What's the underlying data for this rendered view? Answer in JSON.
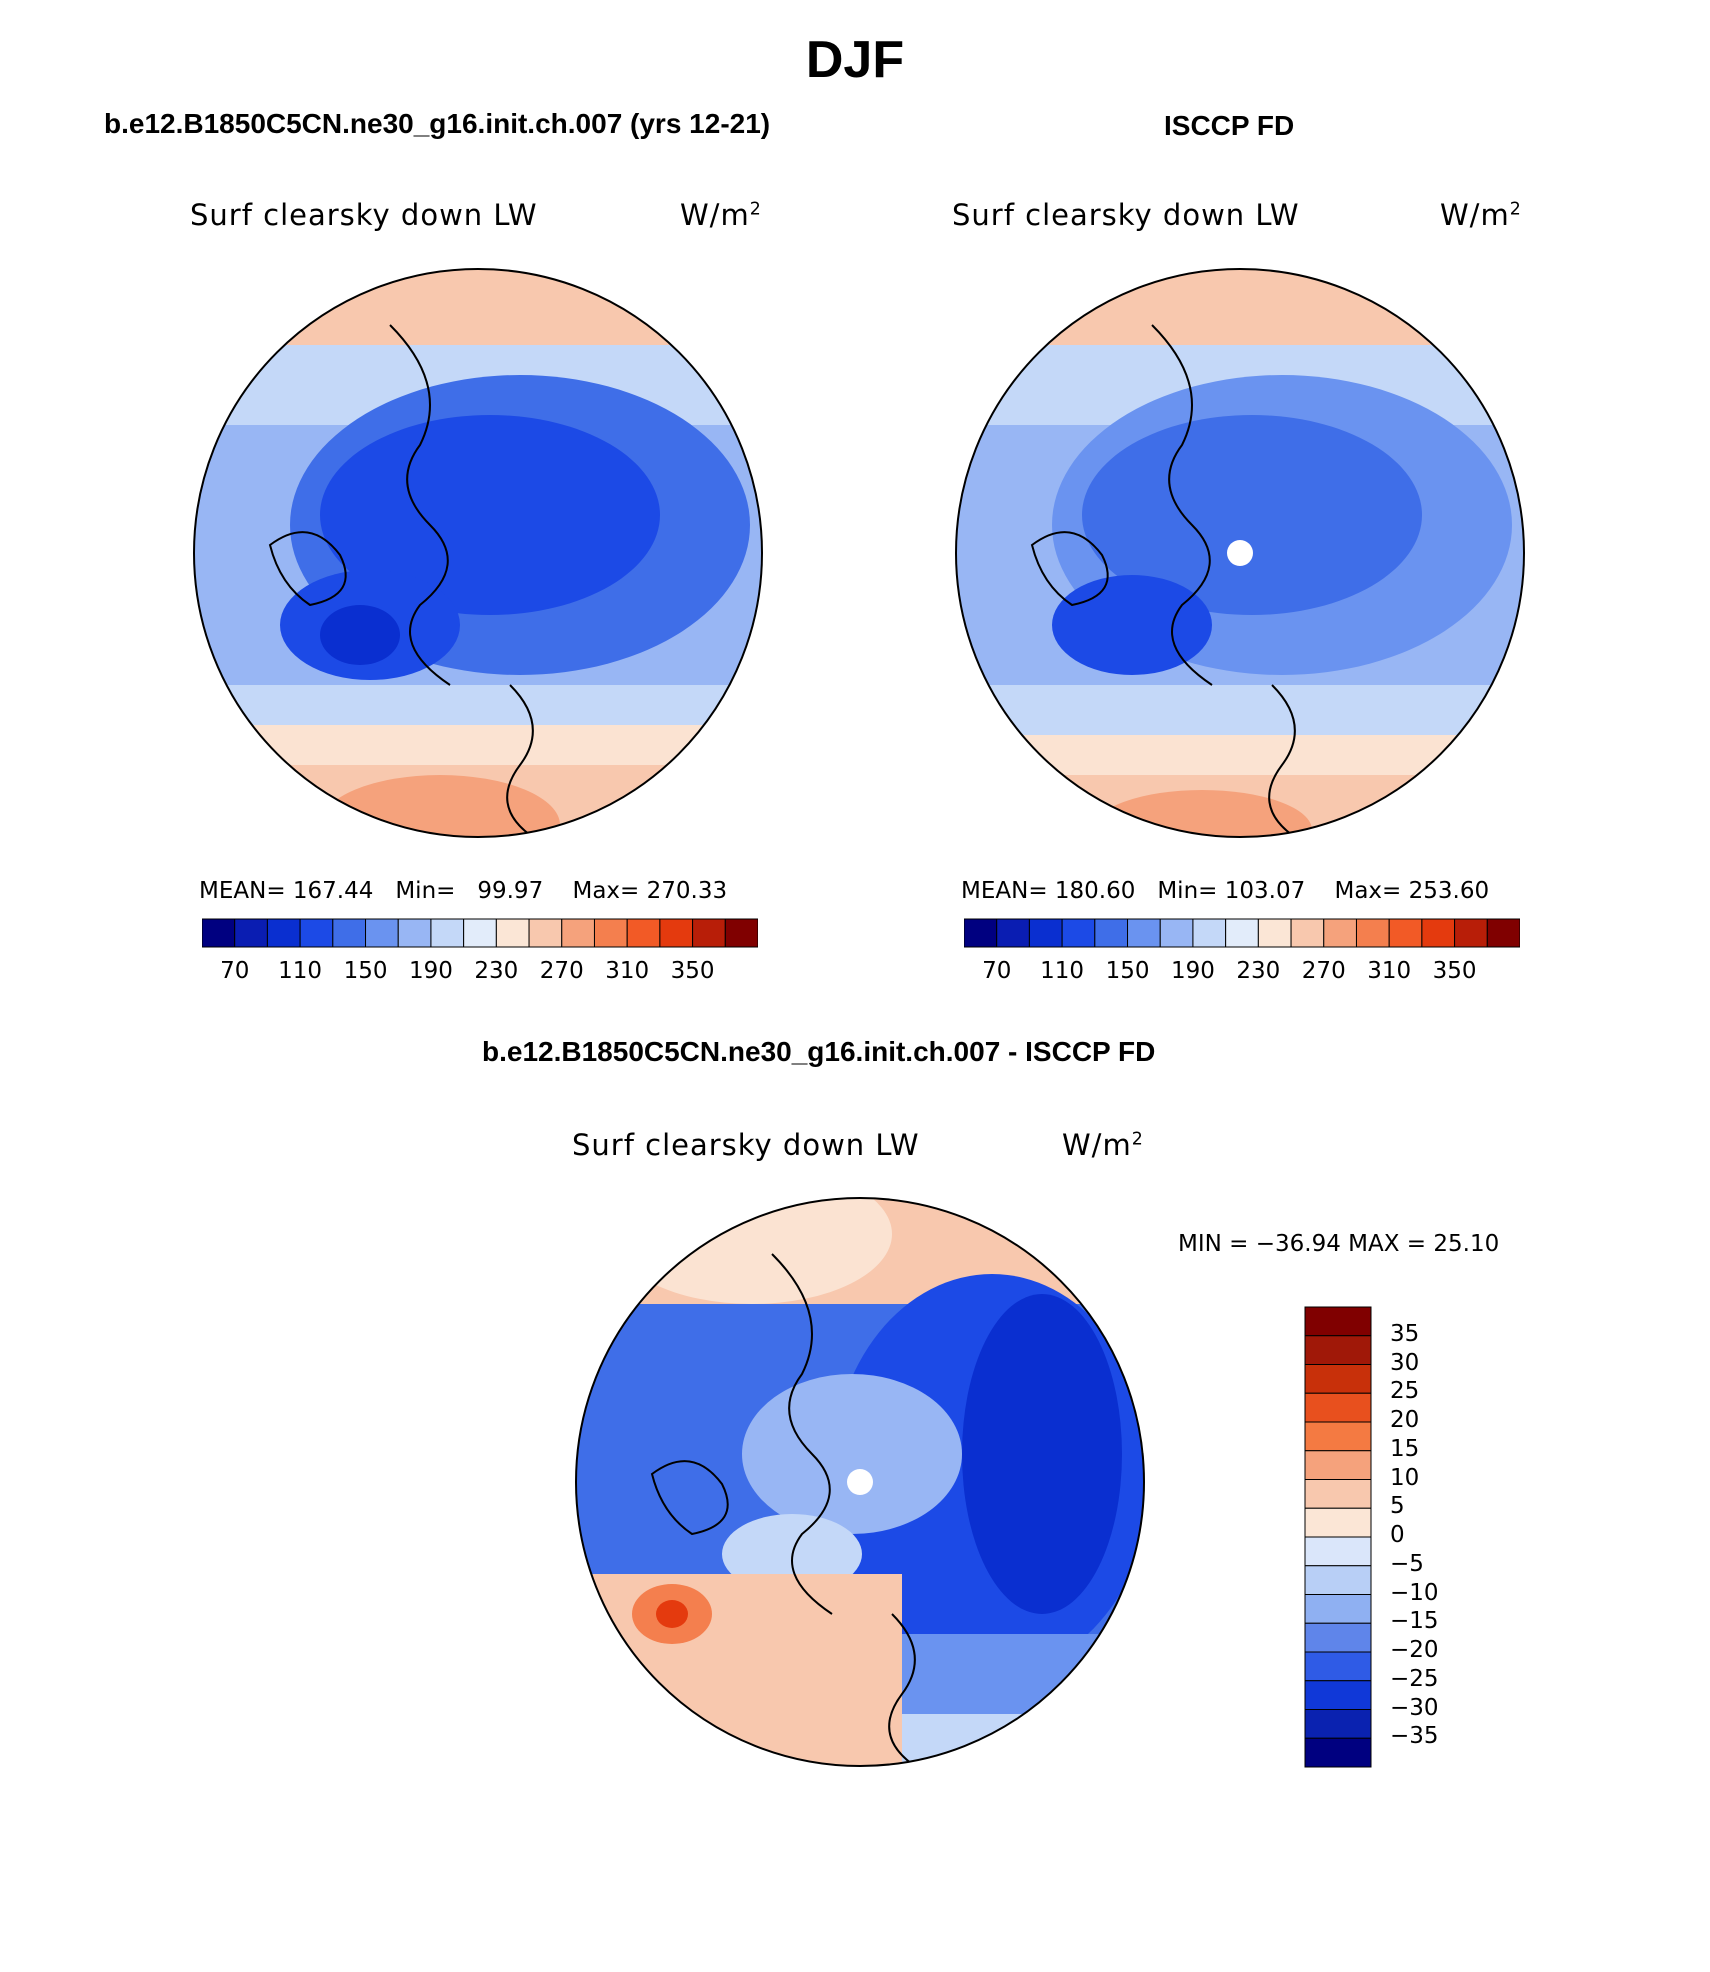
{
  "figure": {
    "title": "DJF",
    "units_base": "W/m",
    "units_exp": "2"
  },
  "panels": [
    {
      "subtitle": "b.e12.B1850C5CN.ne30_g16.init.ch.007 (yrs 12-21)",
      "variable": "Surf clearsky down LW",
      "mean_label": "MEAN=",
      "mean": "167.44",
      "min_label": "Min=",
      "min": "99.97",
      "max_label": "Max=",
      "max": "270.33"
    },
    {
      "subtitle": "ISCCP FD",
      "variable": "Surf clearsky down LW",
      "mean_label": "MEAN=",
      "mean": "180.60",
      "min_label": "Min=",
      "min": "103.07",
      "max_label": "Max=",
      "max": "253.60"
    },
    {
      "subtitle": "b.e12.B1850C5CN.ne30_g16.init.ch.007 - ISCCP FD",
      "variable": "Surf clearsky down LW",
      "minmax_text": "MIN = −36.94 MAX =  25.10"
    }
  ],
  "colors": {
    "blue_scale": [
      "#000080",
      "#0010a8",
      "#0a2fd0",
      "#1c4ae6",
      "#3f6ee8",
      "#6a93f0",
      "#98b6f4",
      "#c4d8f8",
      "#e2ecfa"
    ],
    "red_scale": [
      "#fbe3d2",
      "#f8c8ae",
      "#f5a27c",
      "#f47f4e",
      "#f25a26",
      "#e43a0e",
      "#b81e08",
      "#800000"
    ],
    "abs_bar": [
      "#000080",
      "#0a1db2",
      "#0a2fd0",
      "#1c4ae6",
      "#3f6ee8",
      "#6a93f0",
      "#98b6f4",
      "#c4d8f8",
      "#e2ecfa",
      "#fbe6d6",
      "#f8c8ae",
      "#f5a27c",
      "#f47f4e",
      "#f25a26",
      "#e43a0e",
      "#b81e08",
      "#800000"
    ],
    "diff_bar": [
      "#800000",
      "#a01808",
      "#c8300a",
      "#e8501e",
      "#f47a42",
      "#f5a27c",
      "#f8c8ae",
      "#fbe6d6",
      "#dae6fa",
      "#b8cff6",
      "#8fb0f2",
      "#5f85ea",
      "#2f5be6",
      "#1038d8",
      "#0a22b0",
      "#000080"
    ]
  },
  "chart_data": [
    {
      "type": "heatmap",
      "projection": "north-polar-stereographic",
      "title": "Surf clearsky down LW",
      "units": "W/m^2",
      "stats": {
        "mean": 167.44,
        "min": 99.97,
        "max": 270.33
      },
      "colorbar": {
        "levels": [
          70,
          90,
          110,
          130,
          150,
          170,
          190,
          210,
          230,
          250,
          270,
          290,
          310,
          330,
          350
        ],
        "tick_labels": [
          "70",
          "110",
          "150",
          "190",
          "230",
          "270",
          "310",
          "350"
        ],
        "orientation": "horizontal"
      }
    },
    {
      "type": "heatmap",
      "projection": "north-polar-stereographic",
      "title": "Surf clearsky down LW",
      "units": "W/m^2",
      "stats": {
        "mean": 180.6,
        "min": 103.07,
        "max": 253.6
      },
      "colorbar": {
        "levels": [
          70,
          90,
          110,
          130,
          150,
          170,
          190,
          210,
          230,
          250,
          270,
          290,
          310,
          330,
          350
        ],
        "tick_labels": [
          "70",
          "110",
          "150",
          "190",
          "230",
          "270",
          "310",
          "350"
        ],
        "orientation": "horizontal"
      }
    },
    {
      "type": "heatmap",
      "projection": "north-polar-stereographic",
      "title": "Surf clearsky down LW",
      "units": "W/m^2",
      "stats": {
        "min": -36.94,
        "max": 25.1
      },
      "colorbar": {
        "levels": [
          35,
          30,
          25,
          20,
          15,
          10,
          5,
          0,
          -5,
          -10,
          -15,
          -20,
          -25,
          -30,
          -35
        ],
        "tick_labels": [
          "35",
          "30",
          "25",
          "20",
          "15",
          "10",
          "5",
          "0",
          "−5",
          "−10",
          "−15",
          "−20",
          "−25",
          "−30",
          "−35"
        ],
        "orientation": "vertical"
      }
    }
  ]
}
